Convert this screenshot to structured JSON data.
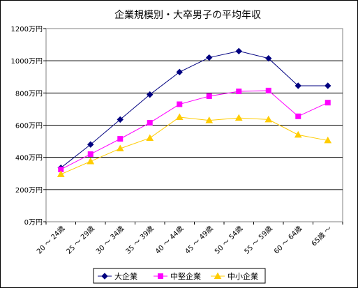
{
  "chart_data": {
    "type": "line",
    "title": "企業規模別・大卒男子の平均年収",
    "categories": [
      "20 ～ 24歳",
      "25 ～ 29歳",
      "30 ～ 34歳",
      "35 ～ 39歳",
      "40 ～ 44歳",
      "45 ～ 49歳",
      "50 ～ 54歳",
      "55 ～ 59歳",
      "60 ～ 64歳",
      "65歳 ～"
    ],
    "ylim": [
      0,
      1200
    ],
    "yticks": [
      0,
      200,
      400,
      600,
      800,
      1000,
      1200
    ],
    "ytick_labels": [
      "0万円",
      "200万円",
      "400万円",
      "600万円",
      "800万円",
      "1000万円",
      "1200万円"
    ],
    "grid": true,
    "legend_position": "bottom",
    "series": [
      {
        "name": "大企業",
        "color": "#000080",
        "marker": "diamond",
        "values": [
          335,
          480,
          635,
          790,
          930,
          1020,
          1060,
          1015,
          845,
          845
        ]
      },
      {
        "name": "中堅企業",
        "color": "#ff00ff",
        "marker": "square",
        "values": [
          325,
          420,
          515,
          615,
          730,
          780,
          810,
          815,
          655,
          740
        ]
      },
      {
        "name": "中小企業",
        "color": "#ffcc00",
        "marker": "triangle",
        "values": [
          295,
          375,
          455,
          520,
          650,
          630,
          645,
          635,
          540,
          505
        ]
      }
    ]
  }
}
